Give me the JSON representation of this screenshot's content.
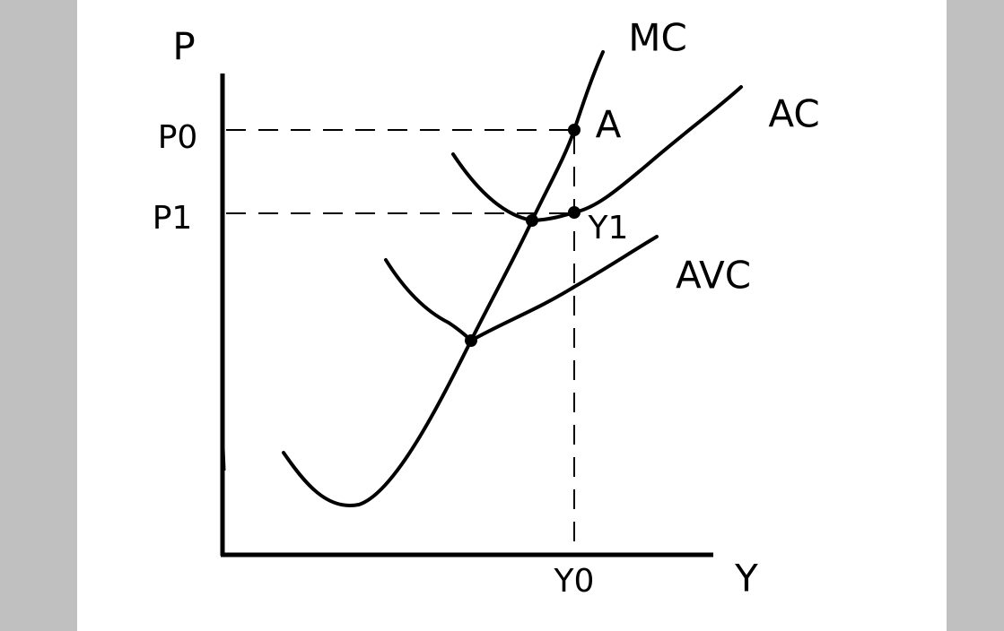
{
  "axes": {
    "y_label": "P",
    "x_label": "Y"
  },
  "ticks": {
    "p0": "P0",
    "p1": "P1",
    "y0": "Y0"
  },
  "curves": {
    "mc": "MC",
    "ac": "AC",
    "avc": "AVC"
  },
  "points": {
    "a": "A",
    "y1": "Y1"
  }
}
